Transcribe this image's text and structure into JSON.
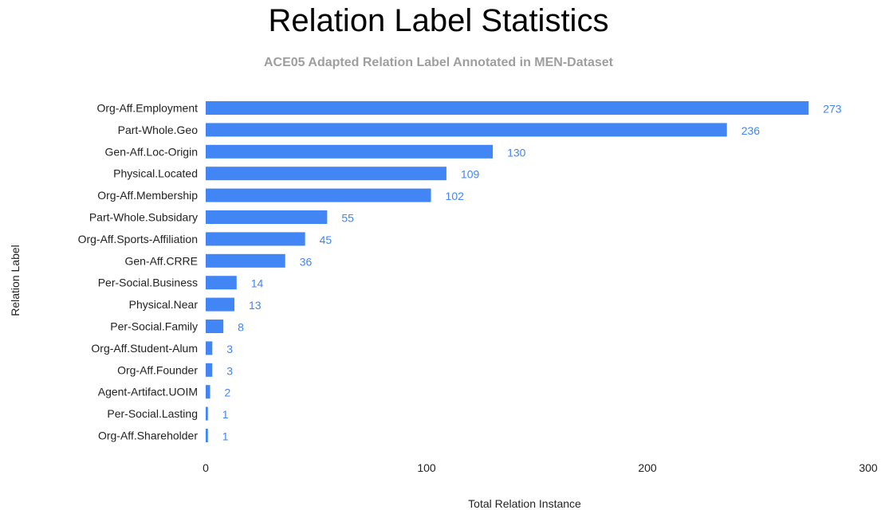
{
  "chart_data": {
    "type": "bar",
    "orientation": "horizontal",
    "title": "Relation Label Statistics",
    "subtitle": "ACE05 Adapted Relation Label Annotated in MEN-Dataset",
    "xlabel": "Total Relation Instance",
    "ylabel": "Relation Label",
    "xlim": [
      0,
      300
    ],
    "xticks": [
      0,
      100,
      200,
      300
    ],
    "grid": false,
    "bar_color": "#4285f4",
    "label_color": "#4285f4",
    "categories": [
      "Org-Aff.Employment",
      "Part-Whole.Geo",
      "Gen-Aff.Loc-Origin",
      "Physical.Located",
      "Org-Aff.Membership",
      "Part-Whole.Subsidary",
      "Org-Aff.Sports-Affiliation",
      "Gen-Aff.CRRE",
      "Per-Social.Business",
      "Physical.Near",
      "Per-Social.Family",
      "Org-Aff.Student-Alum",
      "Org-Aff.Founder",
      "Agent-Artifact.UOIM",
      "Per-Social.Lasting",
      "Org-Aff.Shareholder"
    ],
    "values": [
      273,
      236,
      130,
      109,
      102,
      55,
      45,
      36,
      14,
      13,
      8,
      3,
      3,
      2,
      1,
      1
    ]
  }
}
